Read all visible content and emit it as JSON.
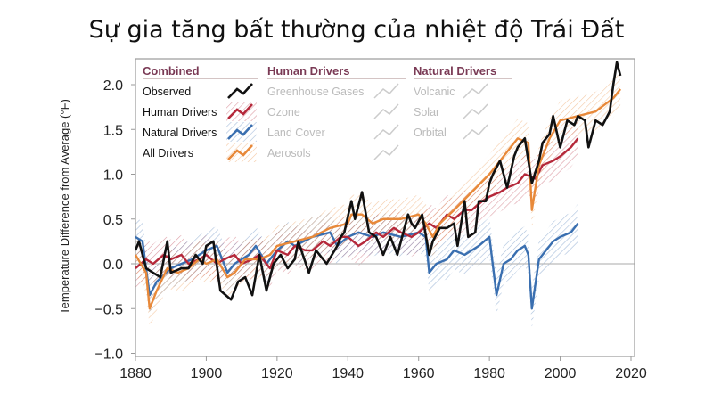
{
  "title": "Sự gia tăng bất thường của nhiệt độ Trái Đất",
  "chart_data": {
    "type": "line",
    "title": "Sự gia tăng bất thường của nhiệt độ Trái Đất",
    "xlabel": "",
    "ylabel": "Temperature Difference from Average (°F)",
    "xlim": [
      1880,
      2020
    ],
    "ylim": [
      -1.0,
      2.3
    ],
    "xticks": [
      "1880",
      "1900",
      "1920",
      "1940",
      "1960",
      "1980",
      "2000",
      "2020"
    ],
    "yticks": [
      "−1.0",
      "−0.5",
      "0.0",
      "0.5",
      "1.0",
      "1.5",
      "2.0"
    ],
    "grid": false,
    "zero_line": true,
    "legend_position": "top-left",
    "legend": {
      "groups": [
        {
          "heading": "Combined",
          "items": [
            "Observed",
            "Human Drivers",
            "Natural Drivers",
            "All Drivers"
          ]
        },
        {
          "heading": "Human Drivers",
          "items": [
            "Greenhouse Gases",
            "Ozone",
            "Land Cover",
            "Aerosols"
          ]
        },
        {
          "heading": "Natural Drivers",
          "items": [
            "Volcanic",
            "Solar",
            "Orbital"
          ]
        }
      ]
    },
    "series": [
      {
        "name": "Observed",
        "color": "#111111",
        "band": false,
        "x": [
          1880,
          1881,
          1883,
          1885,
          1887,
          1889,
          1890,
          1893,
          1895,
          1897,
          1899,
          1900,
          1902,
          1904,
          1907,
          1909,
          1911,
          1913,
          1915,
          1917,
          1919,
          1921,
          1923,
          1925,
          1926,
          1929,
          1931,
          1934,
          1937,
          1938,
          1939,
          1941,
          1942,
          1944,
          1946,
          1948,
          1950,
          1952,
          1954,
          1957,
          1958,
          1959,
          1961,
          1963,
          1964,
          1966,
          1968,
          1970,
          1971,
          1973,
          1974,
          1976,
          1977,
          1979,
          1980,
          1981,
          1983,
          1985,
          1987,
          1988,
          1990,
          1991,
          1992,
          1994,
          1995,
          1997,
          1998,
          2000,
          2002,
          2004,
          2005,
          2007,
          2008,
          2010,
          2012,
          2014,
          2015,
          2016,
          2017
        ],
        "y": [
          0.15,
          0.25,
          -0.05,
          -0.1,
          -0.15,
          0.25,
          -0.1,
          -0.05,
          -0.05,
          0.1,
          0.0,
          0.2,
          0.25,
          -0.3,
          -0.4,
          -0.2,
          -0.15,
          -0.35,
          0.1,
          -0.3,
          0.0,
          0.1,
          -0.05,
          0.05,
          0.25,
          -0.1,
          0.15,
          0.0,
          0.2,
          0.3,
          0.35,
          0.7,
          0.5,
          0.8,
          0.35,
          0.3,
          0.1,
          0.3,
          0.1,
          0.55,
          0.45,
          0.4,
          0.55,
          0.1,
          0.25,
          0.4,
          0.4,
          0.45,
          0.2,
          0.7,
          0.3,
          0.35,
          0.7,
          0.7,
          0.9,
          1.0,
          1.15,
          0.85,
          1.2,
          1.3,
          1.4,
          1.15,
          0.9,
          1.15,
          1.35,
          1.45,
          1.65,
          1.3,
          1.6,
          1.55,
          1.65,
          1.6,
          1.3,
          1.6,
          1.55,
          1.7,
          2.0,
          2.25,
          2.1
        ]
      },
      {
        "name": "Human Drivers",
        "color": "#b5283a",
        "band": true,
        "x": [
          1880,
          1883,
          1885,
          1888,
          1890,
          1893,
          1895,
          1898,
          1900,
          1903,
          1905,
          1908,
          1910,
          1913,
          1915,
          1918,
          1920,
          1923,
          1925,
          1928,
          1930,
          1933,
          1935,
          1938,
          1940,
          1943,
          1945,
          1948,
          1950,
          1953,
          1955,
          1958,
          1960,
          1963,
          1965,
          1968,
          1970,
          1973,
          1975,
          1978,
          1980,
          1983,
          1985,
          1988,
          1990,
          1993,
          1995,
          1998,
          2000,
          2003,
          2005
        ],
        "y": [
          -0.05,
          0.05,
          0.0,
          0.1,
          0.05,
          0.1,
          0.0,
          0.05,
          0.1,
          0.0,
          0.05,
          0.1,
          0.0,
          0.05,
          0.1,
          -0.05,
          0.15,
          0.1,
          0.2,
          0.15,
          0.15,
          0.25,
          0.2,
          0.3,
          0.3,
          0.2,
          0.25,
          0.35,
          0.3,
          0.4,
          0.35,
          0.3,
          0.35,
          0.45,
          0.4,
          0.55,
          0.5,
          0.6,
          0.6,
          0.7,
          0.75,
          0.8,
          0.85,
          0.9,
          1.0,
          0.95,
          1.1,
          1.15,
          1.2,
          1.3,
          1.4
        ]
      },
      {
        "name": "Natural Drivers",
        "color": "#3a6fb0",
        "band": true,
        "x": [
          1880,
          1882,
          1884,
          1886,
          1890,
          1893,
          1896,
          1900,
          1903,
          1906,
          1908,
          1910,
          1912,
          1914,
          1917,
          1920,
          1923,
          1925,
          1930,
          1935,
          1937,
          1940,
          1943,
          1947,
          1950,
          1955,
          1960,
          1962,
          1963,
          1965,
          1968,
          1970,
          1973,
          1977,
          1980,
          1982,
          1984,
          1986,
          1988,
          1990,
          1991,
          1992,
          1994,
          1996,
          1998,
          2000,
          2003,
          2005
        ],
        "y": [
          0.3,
          0.25,
          -0.35,
          -0.2,
          -0.05,
          0.0,
          0.05,
          0.15,
          0.2,
          -0.1,
          0.0,
          0.05,
          0.1,
          0.2,
          0.0,
          0.15,
          0.25,
          0.2,
          0.3,
          0.35,
          0.2,
          0.3,
          0.35,
          0.3,
          0.35,
          0.3,
          0.35,
          0.3,
          -0.1,
          0.0,
          0.05,
          0.15,
          0.1,
          0.2,
          0.3,
          -0.35,
          0.0,
          0.05,
          0.15,
          0.2,
          0.1,
          -0.5,
          0.05,
          0.15,
          0.25,
          0.3,
          0.35,
          0.45
        ]
      },
      {
        "name": "All Drivers",
        "color": "#e8893a",
        "band": true,
        "x": [
          1880,
          1883,
          1884,
          1886,
          1889,
          1892,
          1895,
          1898,
          1900,
          1903,
          1906,
          1908,
          1911,
          1915,
          1918,
          1920,
          1925,
          1930,
          1935,
          1940,
          1941,
          1944,
          1947,
          1950,
          1955,
          1960,
          1962,
          1964,
          1966,
          1970,
          1975,
          1980,
          1982,
          1985,
          1988,
          1991,
          1992,
          1994,
          1997,
          2000,
          2005,
          2010,
          2015,
          2017
        ],
        "y": [
          0.1,
          -0.1,
          -0.5,
          -0.3,
          -0.05,
          -0.1,
          -0.05,
          0.05,
          0.0,
          0.05,
          -0.15,
          -0.1,
          0.05,
          0.05,
          0.1,
          0.2,
          0.25,
          0.3,
          0.4,
          0.45,
          0.55,
          0.55,
          0.45,
          0.5,
          0.5,
          0.55,
          0.45,
          0.3,
          0.45,
          0.6,
          0.8,
          1.0,
          1.1,
          1.25,
          1.4,
          1.35,
          0.6,
          1.1,
          1.4,
          1.6,
          1.65,
          1.7,
          1.85,
          1.95
        ]
      }
    ]
  }
}
